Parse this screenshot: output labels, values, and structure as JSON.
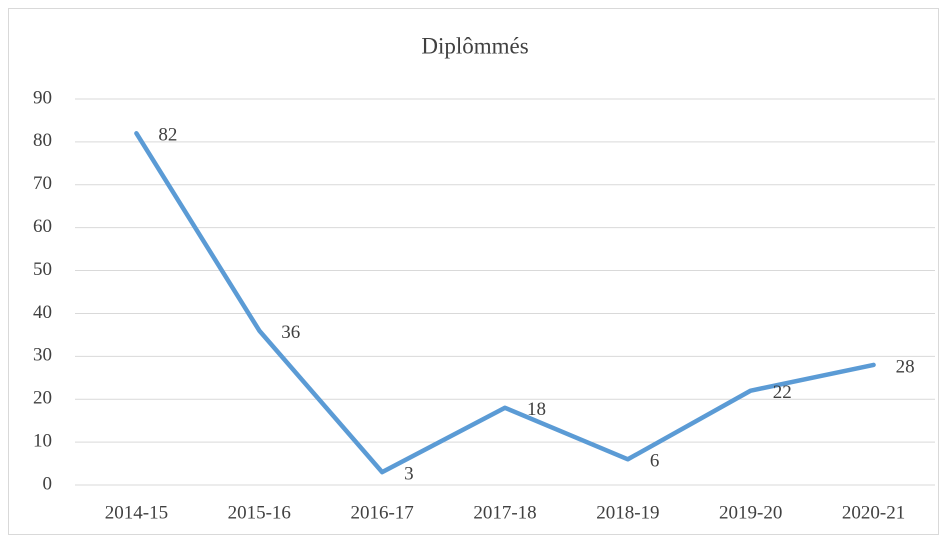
{
  "chart_data": {
    "type": "line",
    "title": "Diplômmés",
    "categories": [
      "2014-15",
      "2015-16",
      "2016-17",
      "2017-18",
      "2018-19",
      "2019-20",
      "2020-21"
    ],
    "values": [
      82,
      36,
      3,
      18,
      6,
      22,
      28
    ],
    "color": "#5b9bd5",
    "ylim": [
      0,
      90
    ],
    "yticks": [
      0,
      10,
      20,
      30,
      40,
      50,
      60,
      70,
      80,
      90
    ],
    "grid": true
  }
}
